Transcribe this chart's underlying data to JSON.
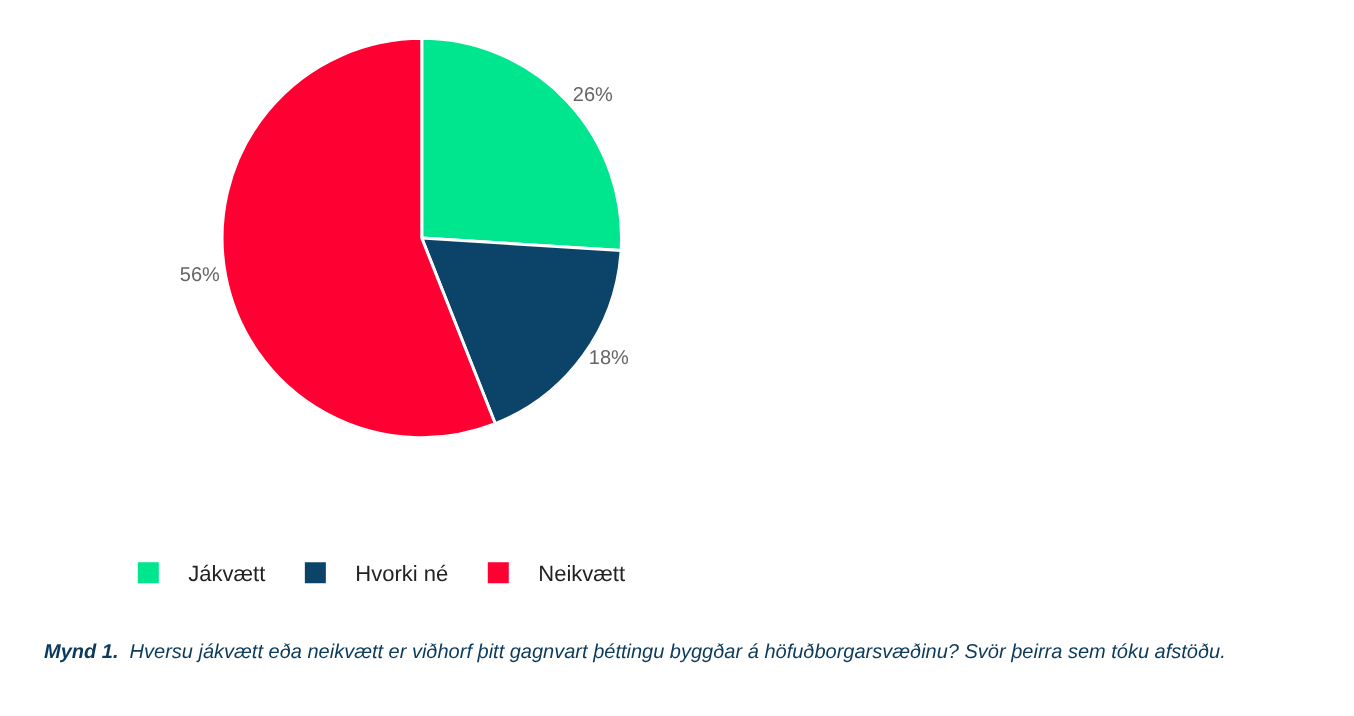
{
  "chart_data": {
    "type": "pie",
    "categories": [
      "Jákvætt",
      "Hvorki né",
      "Neikvætt"
    ],
    "values": [
      26,
      18,
      56
    ],
    "value_labels": [
      "26%",
      "18%",
      "56%"
    ],
    "colors": [
      "#00e68f",
      "#0b4468",
      "#ff0033"
    ],
    "legend": "bottom left",
    "annotations": [
      "Mynd 1.",
      "Hversu jákvætt eða neikvætt er viðhorf þitt gagnvart þéttingu byggðar á höfuðborgarsvæðinu? Svör þeirra sem tóku afstöðu."
    ]
  }
}
